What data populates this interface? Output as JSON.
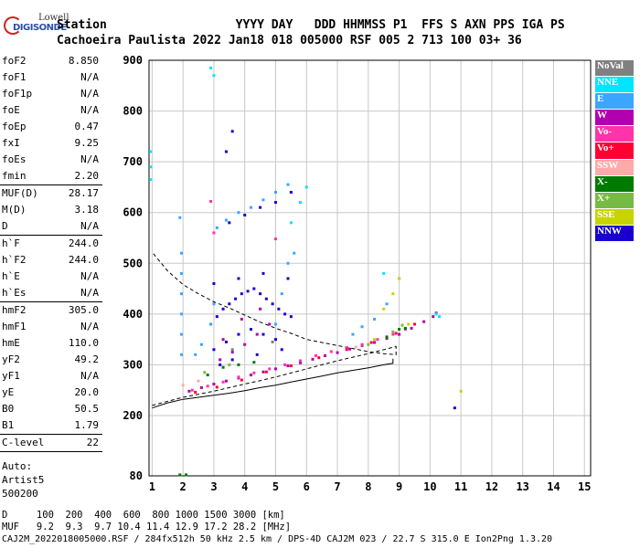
{
  "logo": {
    "brand_top": "Lowell",
    "brand_bottom": "DIGISONDE"
  },
  "header": {
    "row1": "Station                  YYYY DAY   DDD HHMMSS P1  FFS S AXN PPS IGA PS",
    "row2": "Cachoeira Paulista 2022 Jan18 018 005000 RSF 005 2 713 100 03+ 36"
  },
  "params": {
    "group1": [
      {
        "k": "foF2",
        "v": "8.850"
      },
      {
        "k": "foF1",
        "v": "N/A"
      },
      {
        "k": "foF1p",
        "v": "N/A"
      },
      {
        "k": "foE",
        "v": "N/A"
      },
      {
        "k": "foEp",
        "v": "0.47"
      },
      {
        "k": "fxI",
        "v": "9.25"
      },
      {
        "k": "foEs",
        "v": "N/A"
      },
      {
        "k": "fmin",
        "v": "2.20"
      }
    ],
    "group2": [
      {
        "k": "MUF(D)",
        "v": "28.17"
      },
      {
        "k": "M(D)",
        "v": "3.18"
      },
      {
        "k": "D",
        "v": "N/A"
      }
    ],
    "group3": [
      {
        "k": "h`F",
        "v": "244.0"
      },
      {
        "k": "h`F2",
        "v": "244.0"
      },
      {
        "k": "h`E",
        "v": "N/A"
      },
      {
        "k": "h`Es",
        "v": "N/A"
      }
    ],
    "group4": [
      {
        "k": "hmF2",
        "v": "305.0"
      },
      {
        "k": "hmF1",
        "v": "N/A"
      },
      {
        "k": "hmE",
        "v": "110.0"
      },
      {
        "k": "yF2",
        "v": "49.2"
      },
      {
        "k": "yF1",
        "v": "N/A"
      },
      {
        "k": "yE",
        "v": "20.0"
      },
      {
        "k": "B0",
        "v": "50.5"
      },
      {
        "k": "B1",
        "v": "1.79"
      }
    ],
    "group5": [
      {
        "k": "C-level",
        "v": "22"
      }
    ],
    "auto": [
      "Auto:",
      "Artist5",
      "500200"
    ]
  },
  "legend": [
    {
      "label": "NoVal",
      "color": "#808080"
    },
    {
      "label": "NNE",
      "color": "#00e5ff"
    },
    {
      "label": "E",
      "color": "#3aa6ff"
    },
    {
      "label": "W",
      "color": "#b000b0"
    },
    {
      "label": "Vo-",
      "color": "#ff33aa"
    },
    {
      "label": "Vo+",
      "color": "#ff0033"
    },
    {
      "label": "SSW",
      "color": "#ffaaaa"
    },
    {
      "label": "X-",
      "color": "#007a00"
    },
    {
      "label": "X+",
      "color": "#77bb44"
    },
    {
      "label": "SSE",
      "color": "#c8d400"
    },
    {
      "label": "NNW",
      "color": "#1a00d0"
    }
  ],
  "footer": {
    "line1": "D     100  200  400  600  800 1000 1500 3000 [km]",
    "line2": "MUF   9.2  9.3  9.7 10.4 11.4 12.9 17.2 28.2 [MHz]",
    "line3": "CAJ2M_2022018005000.RSF / 284fx512h 50 kHz 2.5 km / DPS-4D CAJ2M 023 / 22.7 S 315.0 E Ion2Png 1.3.20"
  },
  "chart_data": {
    "type": "scatter",
    "title": "",
    "xlabel": "",
    "ylabel": "",
    "xlim": [
      0.9,
      15.2
    ],
    "ylim": [
      80,
      900
    ],
    "x_ticks": [
      1,
      2,
      3,
      4,
      5,
      6,
      7,
      8,
      9,
      10,
      11,
      12,
      13,
      14,
      15
    ],
    "y_ticks": [
      80,
      200,
      300,
      400,
      500,
      600,
      700,
      800,
      900
    ],
    "y_tick_labels": [
      "80",
      "200",
      "300",
      "400",
      "500",
      "600",
      "700",
      "800",
      "900"
    ],
    "grid": true,
    "legend_position": "right",
    "series": [
      {
        "name": "W",
        "color": "#b000b0",
        "points": [
          [
            2.2,
            248
          ],
          [
            2.6,
            255
          ],
          [
            3.0,
            262
          ],
          [
            3.4,
            268
          ],
          [
            3.8,
            274
          ],
          [
            4.2,
            280
          ],
          [
            4.6,
            286
          ],
          [
            5.0,
            292
          ],
          [
            5.4,
            298
          ],
          [
            5.8,
            304
          ],
          [
            6.2,
            311
          ],
          [
            6.6,
            318
          ],
          [
            7.0,
            324
          ],
          [
            7.4,
            331
          ],
          [
            7.8,
            338
          ],
          [
            8.2,
            344
          ],
          [
            8.6,
            352
          ],
          [
            9.0,
            360
          ],
          [
            9.4,
            372
          ],
          [
            9.8,
            385
          ],
          [
            10.1,
            395
          ],
          [
            10.2,
            402
          ],
          [
            3.2,
            310
          ],
          [
            3.6,
            325
          ],
          [
            4.0,
            340
          ],
          [
            4.4,
            360
          ],
          [
            4.8,
            380
          ],
          [
            3.3,
            350
          ],
          [
            3.9,
            390
          ],
          [
            4.5,
            410
          ]
        ]
      },
      {
        "name": "Vo-",
        "color": "#ff33aa",
        "points": [
          [
            2.3,
            250
          ],
          [
            2.8,
            258
          ],
          [
            3.3,
            266
          ],
          [
            3.8,
            276
          ],
          [
            4.3,
            284
          ],
          [
            4.8,
            292
          ],
          [
            5.3,
            300
          ],
          [
            5.8,
            308
          ],
          [
            6.3,
            318
          ],
          [
            6.8,
            326
          ],
          [
            7.3,
            334
          ],
          [
            7.8,
            340
          ],
          [
            8.3,
            350
          ],
          [
            8.8,
            360
          ],
          [
            9.2,
            370
          ],
          [
            2.9,
            622
          ],
          [
            3.0,
            560
          ],
          [
            5.0,
            548
          ]
        ]
      },
      {
        "name": "Vo+",
        "color": "#ff0033",
        "points": [
          [
            2.4,
            246
          ],
          [
            3.1,
            256
          ],
          [
            3.9,
            270
          ],
          [
            4.7,
            286
          ],
          [
            5.5,
            298
          ],
          [
            6.4,
            314
          ],
          [
            7.3,
            330
          ],
          [
            8.1,
            344
          ],
          [
            8.9,
            362
          ],
          [
            9.5,
            380
          ]
        ]
      },
      {
        "name": "NNW",
        "color": "#1a00d0",
        "points": [
          [
            2.9,
            380
          ],
          [
            3.1,
            395
          ],
          [
            3.3,
            410
          ],
          [
            3.5,
            420
          ],
          [
            3.7,
            430
          ],
          [
            3.9,
            440
          ],
          [
            4.1,
            445
          ],
          [
            4.3,
            450
          ],
          [
            4.5,
            440
          ],
          [
            4.7,
            430
          ],
          [
            4.9,
            420
          ],
          [
            5.1,
            410
          ],
          [
            5.3,
            400
          ],
          [
            5.5,
            395
          ],
          [
            3.0,
            330
          ],
          [
            3.4,
            345
          ],
          [
            3.8,
            360
          ],
          [
            4.2,
            370
          ],
          [
            4.6,
            360
          ],
          [
            5.0,
            350
          ],
          [
            3.2,
            300
          ],
          [
            3.6,
            310
          ],
          [
            4.4,
            320
          ],
          [
            5.2,
            330
          ],
          [
            3.5,
            580
          ],
          [
            4.0,
            595
          ],
          [
            4.5,
            610
          ],
          [
            5.0,
            620
          ],
          [
            5.5,
            640
          ],
          [
            3.4,
            720
          ],
          [
            3.6,
            760
          ],
          [
            10.8,
            215
          ],
          [
            3.0,
            460
          ],
          [
            3.8,
            470
          ],
          [
            4.6,
            480
          ],
          [
            5.4,
            470
          ]
        ]
      },
      {
        "name": "E",
        "color": "#3aa6ff",
        "points": [
          [
            1.95,
            320
          ],
          [
            1.95,
            360
          ],
          [
            1.95,
            400
          ],
          [
            1.95,
            440
          ],
          [
            1.95,
            480
          ],
          [
            1.95,
            520
          ],
          [
            1.9,
            590
          ],
          [
            2.9,
            380
          ],
          [
            3.0,
            420
          ],
          [
            5.0,
            380
          ],
          [
            5.2,
            440
          ],
          [
            5.4,
            500
          ],
          [
            5.6,
            520
          ],
          [
            3.1,
            570
          ],
          [
            3.4,
            585
          ],
          [
            3.8,
            600
          ],
          [
            4.2,
            610
          ],
          [
            4.6,
            625
          ],
          [
            5.0,
            640
          ],
          [
            5.4,
            655
          ],
          [
            7.5,
            360
          ],
          [
            7.8,
            375
          ],
          [
            8.2,
            390
          ],
          [
            8.6,
            420
          ],
          [
            9.0,
            470
          ],
          [
            2.4,
            320
          ],
          [
            2.6,
            340
          ]
        ]
      },
      {
        "name": "NNE",
        "color": "#00e5ff",
        "points": [
          [
            0.95,
            665
          ],
          [
            0.95,
            690
          ],
          [
            0.95,
            720
          ],
          [
            2.9,
            885
          ],
          [
            3.0,
            870
          ],
          [
            5.5,
            580
          ],
          [
            5.8,
            620
          ],
          [
            6.0,
            650
          ],
          [
            8.5,
            480
          ],
          [
            10.2,
            400
          ],
          [
            10.3,
            395
          ]
        ]
      },
      {
        "name": "X-",
        "color": "#007a00",
        "points": [
          [
            2.8,
            280
          ],
          [
            3.3,
            295
          ],
          [
            3.8,
            300
          ],
          [
            4.3,
            305
          ],
          [
            8.6,
            355
          ],
          [
            9.0,
            370
          ],
          [
            9.2,
            372
          ],
          [
            1.9,
            82
          ],
          [
            2.1,
            82
          ]
        ]
      },
      {
        "name": "X+",
        "color": "#77bb44",
        "points": [
          [
            2.7,
            285
          ],
          [
            3.5,
            300
          ],
          [
            8.8,
            365
          ],
          [
            9.1,
            378
          ],
          [
            8.0,
            340
          ]
        ]
      },
      {
        "name": "SSE",
        "color": "#c8d400",
        "points": [
          [
            8.5,
            410
          ],
          [
            8.8,
            440
          ],
          [
            9.0,
            470
          ],
          [
            9.3,
            380
          ],
          [
            8.2,
            350
          ],
          [
            11.0,
            248
          ],
          [
            9.0,
            470
          ]
        ]
      },
      {
        "name": "SSW",
        "color": "#ffaaaa",
        "points": [
          [
            2.0,
            260
          ],
          [
            2.5,
            268
          ],
          [
            7.6,
            335
          ]
        ]
      },
      {
        "name": "NoVal",
        "color": "#808080",
        "points": [
          [
            3.6,
            330
          ],
          [
            4.9,
            345
          ]
        ]
      }
    ],
    "curves": [
      {
        "style": "solid",
        "points": [
          [
            1.0,
            215
          ],
          [
            1.5,
            225
          ],
          [
            2.0,
            232
          ],
          [
            2.5,
            236
          ],
          [
            3.0,
            240
          ],
          [
            3.5,
            244
          ],
          [
            4.0,
            249
          ],
          [
            4.5,
            255
          ],
          [
            5.0,
            260
          ],
          [
            5.5,
            266
          ],
          [
            6.0,
            272
          ],
          [
            6.5,
            278
          ],
          [
            7.0,
            284
          ],
          [
            7.5,
            289
          ],
          [
            8.0,
            294
          ],
          [
            8.5,
            300
          ],
          [
            8.8,
            303
          ],
          [
            8.8,
            312
          ]
        ]
      },
      {
        "style": "dashed",
        "points": [
          [
            1.0,
            220
          ],
          [
            1.5,
            228
          ],
          [
            2.0,
            236
          ],
          [
            2.5,
            242
          ],
          [
            3.0,
            248
          ],
          [
            3.5,
            255
          ],
          [
            4.0,
            262
          ],
          [
            4.5,
            269
          ],
          [
            5.0,
            276
          ],
          [
            5.5,
            284
          ],
          [
            6.0,
            292
          ],
          [
            6.5,
            300
          ],
          [
            7.0,
            308
          ],
          [
            7.5,
            315
          ],
          [
            8.0,
            322
          ],
          [
            8.5,
            330
          ],
          [
            8.9,
            336
          ],
          [
            8.9,
            320
          ],
          [
            8.5,
            322
          ],
          [
            8.0,
            326
          ],
          [
            7.5,
            332
          ],
          [
            7.0,
            338
          ],
          [
            6.5,
            344
          ],
          [
            6.0,
            350
          ],
          [
            5.5,
            362
          ],
          [
            5.0,
            372
          ],
          [
            4.5,
            384
          ],
          [
            4.0,
            398
          ],
          [
            3.5,
            412
          ],
          [
            3.0,
            424
          ],
          [
            2.5,
            440
          ],
          [
            2.0,
            458
          ],
          [
            1.5,
            485
          ],
          [
            1.0,
            522
          ]
        ]
      }
    ]
  }
}
